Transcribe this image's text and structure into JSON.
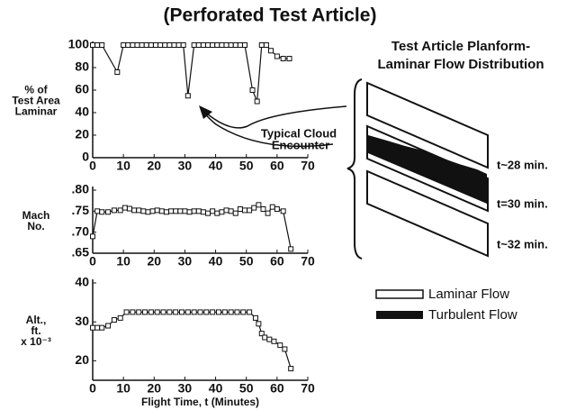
{
  "title": "(Perforated Test Article)",
  "chart_data": [
    {
      "type": "line",
      "ylabel": [
        "% of",
        "Test Area",
        "Laminar"
      ],
      "x": [
        0,
        1.5,
        3,
        8,
        10,
        11.5,
        13,
        14.5,
        16,
        17.5,
        19,
        20.5,
        22,
        23.5,
        25,
        26.5,
        28,
        29.5,
        31,
        33,
        34.5,
        36,
        37.5,
        39,
        40.5,
        42,
        43.5,
        45,
        46.5,
        48,
        49.5,
        52,
        53.5,
        55,
        56.5,
        58,
        60,
        62,
        64
      ],
      "values": [
        100,
        100,
        100,
        76,
        100,
        100,
        100,
        100,
        100,
        100,
        100,
        100,
        100,
        100,
        100,
        100,
        100,
        100,
        55,
        100,
        100,
        100,
        100,
        100,
        100,
        100,
        100,
        100,
        100,
        100,
        100,
        60,
        50,
        100,
        100,
        95,
        90,
        88,
        88
      ],
      "color": "#111111",
      "xlim": [
        0,
        70
      ],
      "xticks": [
        0,
        10,
        20,
        30,
        40,
        50,
        60,
        70
      ],
      "ylim": [
        0,
        100
      ],
      "yticks": [
        0,
        20,
        40,
        60,
        80,
        100
      ]
    },
    {
      "type": "line",
      "ylabel": [
        "Mach",
        "No."
      ],
      "x": [
        0,
        1.5,
        3,
        5,
        7,
        9,
        10.5,
        12,
        13.5,
        15,
        16.5,
        18,
        19.5,
        21,
        22.5,
        24,
        25.5,
        27,
        28.5,
        30,
        31.5,
        33,
        34.5,
        36,
        37.5,
        39,
        40.5,
        42,
        43.5,
        45,
        46.5,
        48,
        49.5,
        51,
        52.5,
        54,
        55.5,
        57,
        58.5,
        60,
        62,
        64.5
      ],
      "values": [
        0.69,
        0.75,
        0.748,
        0.748,
        0.752,
        0.752,
        0.758,
        0.756,
        0.752,
        0.752,
        0.75,
        0.748,
        0.75,
        0.752,
        0.75,
        0.748,
        0.75,
        0.75,
        0.75,
        0.75,
        0.748,
        0.75,
        0.75,
        0.748,
        0.745,
        0.75,
        0.745,
        0.748,
        0.752,
        0.75,
        0.745,
        0.755,
        0.752,
        0.752,
        0.758,
        0.765,
        0.755,
        0.745,
        0.76,
        0.755,
        0.75,
        0.66
      ],
      "color": "#111111",
      "xlim": [
        0,
        70
      ],
      "xticks": [
        0,
        10,
        20,
        30,
        40,
        50,
        60,
        70
      ],
      "ylim": [
        0.65,
        0.8
      ],
      "yticks": [
        {
          "value": 0.65,
          "label": ".65"
        },
        {
          "value": 0.7,
          "label": ".70"
        },
        {
          "value": 0.75,
          "label": ".75"
        },
        {
          "value": 0.8,
          "label": ".80"
        }
      ]
    },
    {
      "type": "line",
      "ylabel": [
        "Alt.,",
        "ft.",
        "x 10⁻³"
      ],
      "xlabel": "Flight Time, t (Minutes)",
      "x": [
        0,
        1.5,
        3,
        5,
        7,
        9,
        11,
        13,
        15,
        17,
        19,
        21,
        23,
        25,
        27,
        29,
        31,
        33,
        35,
        37,
        39,
        41,
        43,
        45,
        47,
        49,
        51,
        53,
        54,
        55,
        56,
        57.5,
        59,
        61,
        62.5,
        64.5
      ],
      "values": [
        28.5,
        28.5,
        28.5,
        29,
        30.5,
        31,
        32.5,
        32.5,
        32.5,
        32.5,
        32.5,
        32.5,
        32.5,
        32.5,
        32.5,
        32.5,
        32.5,
        32.5,
        32.5,
        32.5,
        32.5,
        32.5,
        32.5,
        32.5,
        32.5,
        32.5,
        32.5,
        31,
        29.5,
        27,
        26,
        25.5,
        25,
        24,
        23,
        18
      ],
      "color": "#111111",
      "xlim": [
        0,
        70
      ],
      "xticks": [
        0,
        10,
        20,
        30,
        40,
        50,
        60,
        70
      ],
      "ylim": [
        15,
        40
      ],
      "yticks": [
        20,
        30,
        40
      ]
    }
  ],
  "annotation": [
    "Typical Cloud",
    "Encounter"
  ],
  "diagram": {
    "title": [
      "Test Article Planform-",
      "Laminar Flow Distribution"
    ],
    "times": [
      "t~28 min.",
      "t=30 min.",
      "t~32 min."
    ]
  },
  "legend": [
    "Laminar Flow",
    "Turbulent Flow"
  ]
}
